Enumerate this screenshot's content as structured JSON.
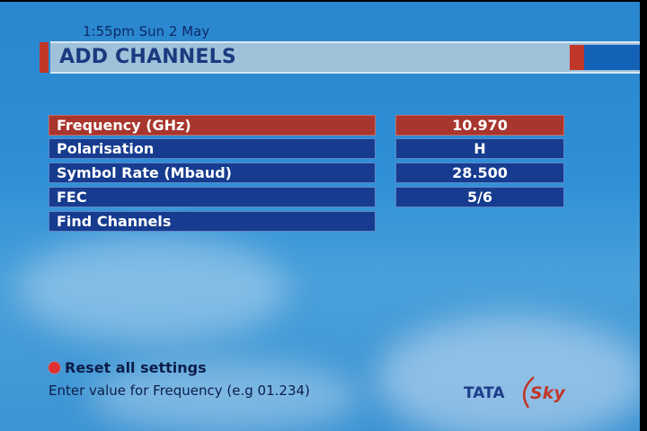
{
  "header": {
    "clock": "1:55pm Sun 2 May",
    "title": "ADD CHANNELS"
  },
  "settings": [
    {
      "label": "Frequency (GHz)",
      "value": "10.970",
      "selected": true
    },
    {
      "label": "Polarisation",
      "value": "H",
      "selected": false
    },
    {
      "label": "Symbol Rate (Mbaud)",
      "value": "28.500",
      "selected": false
    },
    {
      "label": "FEC",
      "value": "5/6",
      "selected": false
    },
    {
      "label": "Find Channels",
      "selected": false
    }
  ],
  "footer": {
    "reset_label": "Reset all settings",
    "reset_icon": "red-button-icon",
    "hint": "Enter value for Frequency (e.g 01.234)"
  },
  "logo": {
    "text": "TATA Sky"
  },
  "colors": {
    "selected": "#a8352e",
    "row": "#163b8f",
    "accent_red": "#c0372a",
    "background": "#2a87cf"
  }
}
